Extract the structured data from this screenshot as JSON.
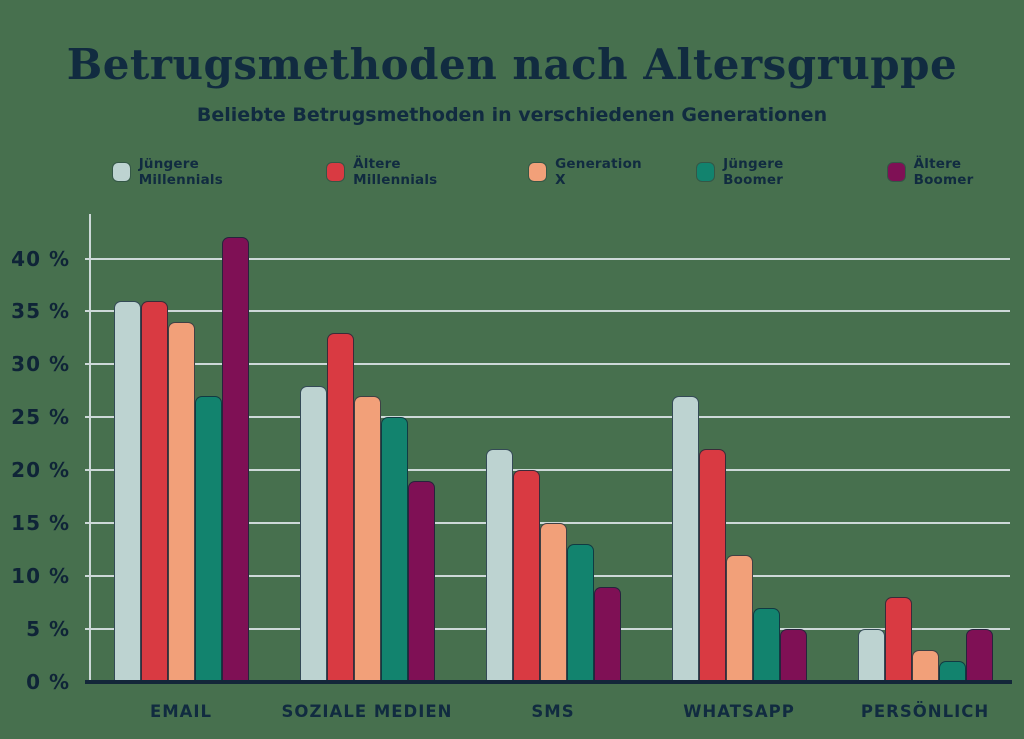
{
  "header": {
    "title": "Betrugsmethoden nach Altersgruppe",
    "subtitle": "Beliebte Betrugsmethoden in verschiedenen Generationen"
  },
  "colors": {
    "background": "#47704e",
    "text": "#112b40",
    "gridline": "#cdd9d8",
    "axis_line": "#132739",
    "series": [
      "#bdd3d1",
      "#d93a42",
      "#f2a079",
      "#12836e",
      "#7f1055"
    ]
  },
  "chart_data": {
    "type": "bar",
    "title": "Betrugsmethoden nach Altersgruppe",
    "subtitle": "Beliebte Betrugsmethoden in verschiedenen Generationen",
    "categories": [
      "EMAIL",
      "SOZIALE MEDIEN",
      "SMS",
      "WHATSAPP",
      "PERSÖNLICH"
    ],
    "series": [
      {
        "name": "Jüngere Millennials",
        "color": "#bdd3d1",
        "values": [
          36,
          28,
          22,
          27,
          5
        ]
      },
      {
        "name": "Ältere Millennials",
        "color": "#d93a42",
        "values": [
          36,
          33,
          20,
          22,
          8
        ]
      },
      {
        "name": "Generation X",
        "color": "#f2a079",
        "values": [
          34,
          27,
          15,
          12,
          3
        ]
      },
      {
        "name": "Jüngere Boomer",
        "color": "#12836e",
        "values": [
          27,
          25,
          13,
          7,
          2
        ]
      },
      {
        "name": "Ältere Boomer",
        "color": "#7f1055",
        "values": [
          42,
          19,
          9,
          5,
          5
        ]
      }
    ],
    "y_axis": {
      "unit": "%",
      "min": 0,
      "max": 44,
      "tick_step": 5,
      "tick_labels": [
        "0 %",
        "5 %",
        "10 %",
        "15 %",
        "20 %",
        "25 %",
        "30 %",
        "35 %",
        "40 %"
      ]
    },
    "xlabel": "",
    "ylabel": "",
    "ylim": [
      0,
      44
    ],
    "grid": "horizontal",
    "legend_position": "top"
  }
}
